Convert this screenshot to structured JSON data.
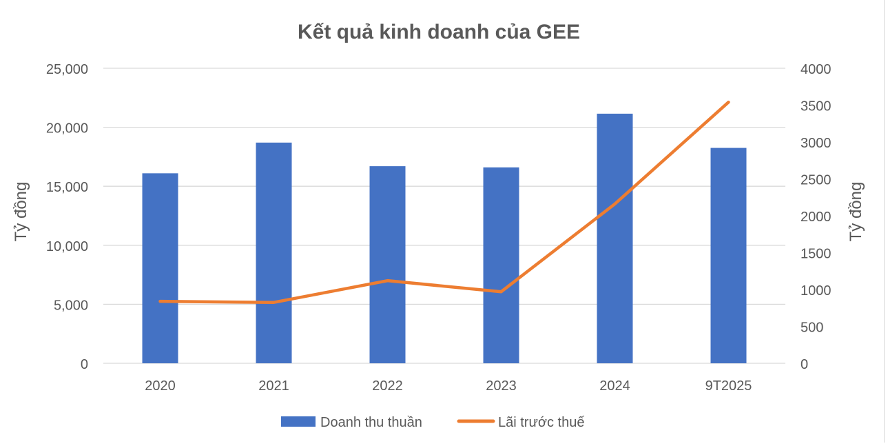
{
  "chart_data": {
    "type": "bar",
    "title": "Kết quả kinh doanh của GEE",
    "categories": [
      "2020",
      "2021",
      "2022",
      "2023",
      "2024",
      "9T2025"
    ],
    "y_left": {
      "label": "Tỷ đồng",
      "ylim": [
        0,
        25000
      ],
      "ticks": [
        "0",
        "5,000",
        "10,000",
        "15,000",
        "20,000",
        "25,000"
      ]
    },
    "y_right": {
      "label": "Tỷ đồng",
      "ylim": [
        0,
        4000
      ],
      "ticks": [
        "0",
        "500",
        "1000",
        "1500",
        "2000",
        "2500",
        "3000",
        "3500",
        "4000"
      ]
    },
    "series": [
      {
        "name": "Doanh thu thuần",
        "type": "bar",
        "axis": "left",
        "color": "#4472c4",
        "values": [
          16100,
          18700,
          16700,
          16600,
          21150,
          18250
        ]
      },
      {
        "name": "Lãi trước thuế",
        "type": "line",
        "axis": "right",
        "color": "#ed7d31",
        "values": [
          840,
          825,
          1120,
          970,
          2160,
          3540
        ]
      }
    ],
    "grid": true,
    "legend": "bottom"
  }
}
